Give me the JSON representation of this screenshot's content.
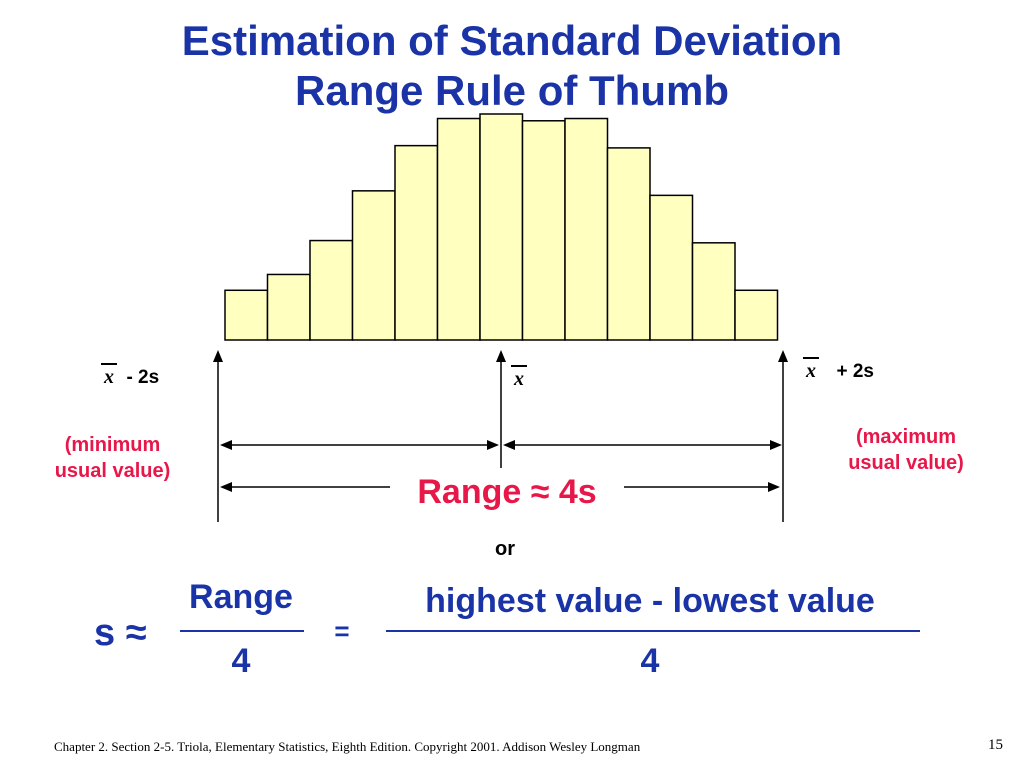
{
  "title": {
    "line1": "Estimation of Standard Deviation",
    "line2": "Range Rule of Thumb"
  },
  "histogram": {
    "fill": "#ffffc0",
    "stroke": "#000000",
    "relative_heights": [
      0.22,
      0.29,
      0.44,
      0.66,
      0.86,
      0.98,
      1.0,
      0.97,
      0.98,
      0.85,
      0.64,
      0.43,
      0.22
    ]
  },
  "markers": {
    "left": {
      "symbol": "x",
      "text": "-  2s",
      "note_line1": "(minimum",
      "note_line2": "usual  value)"
    },
    "center": {
      "symbol": "x"
    },
    "right": {
      "symbol": "x",
      "text": "+  2s",
      "note_line1": "(maximum",
      "note_line2": "usual  value)"
    }
  },
  "range_label": "Range ≈ 4s",
  "or_label": "or",
  "formula": {
    "lhs": "s ≈",
    "frac1_num": "Range",
    "frac1_den": "4",
    "equals": "=",
    "frac2_num": "highest value - lowest value",
    "frac2_den": "4"
  },
  "footer": {
    "text": "Chapter 2.  Section 2-5. Triola, Elementary Statistics, Eighth Edition. Copyright  2001.  Addison Wesley Longman",
    "page": "15"
  },
  "colors": {
    "title": "#1a33a6",
    "accent": "#e8174a"
  }
}
